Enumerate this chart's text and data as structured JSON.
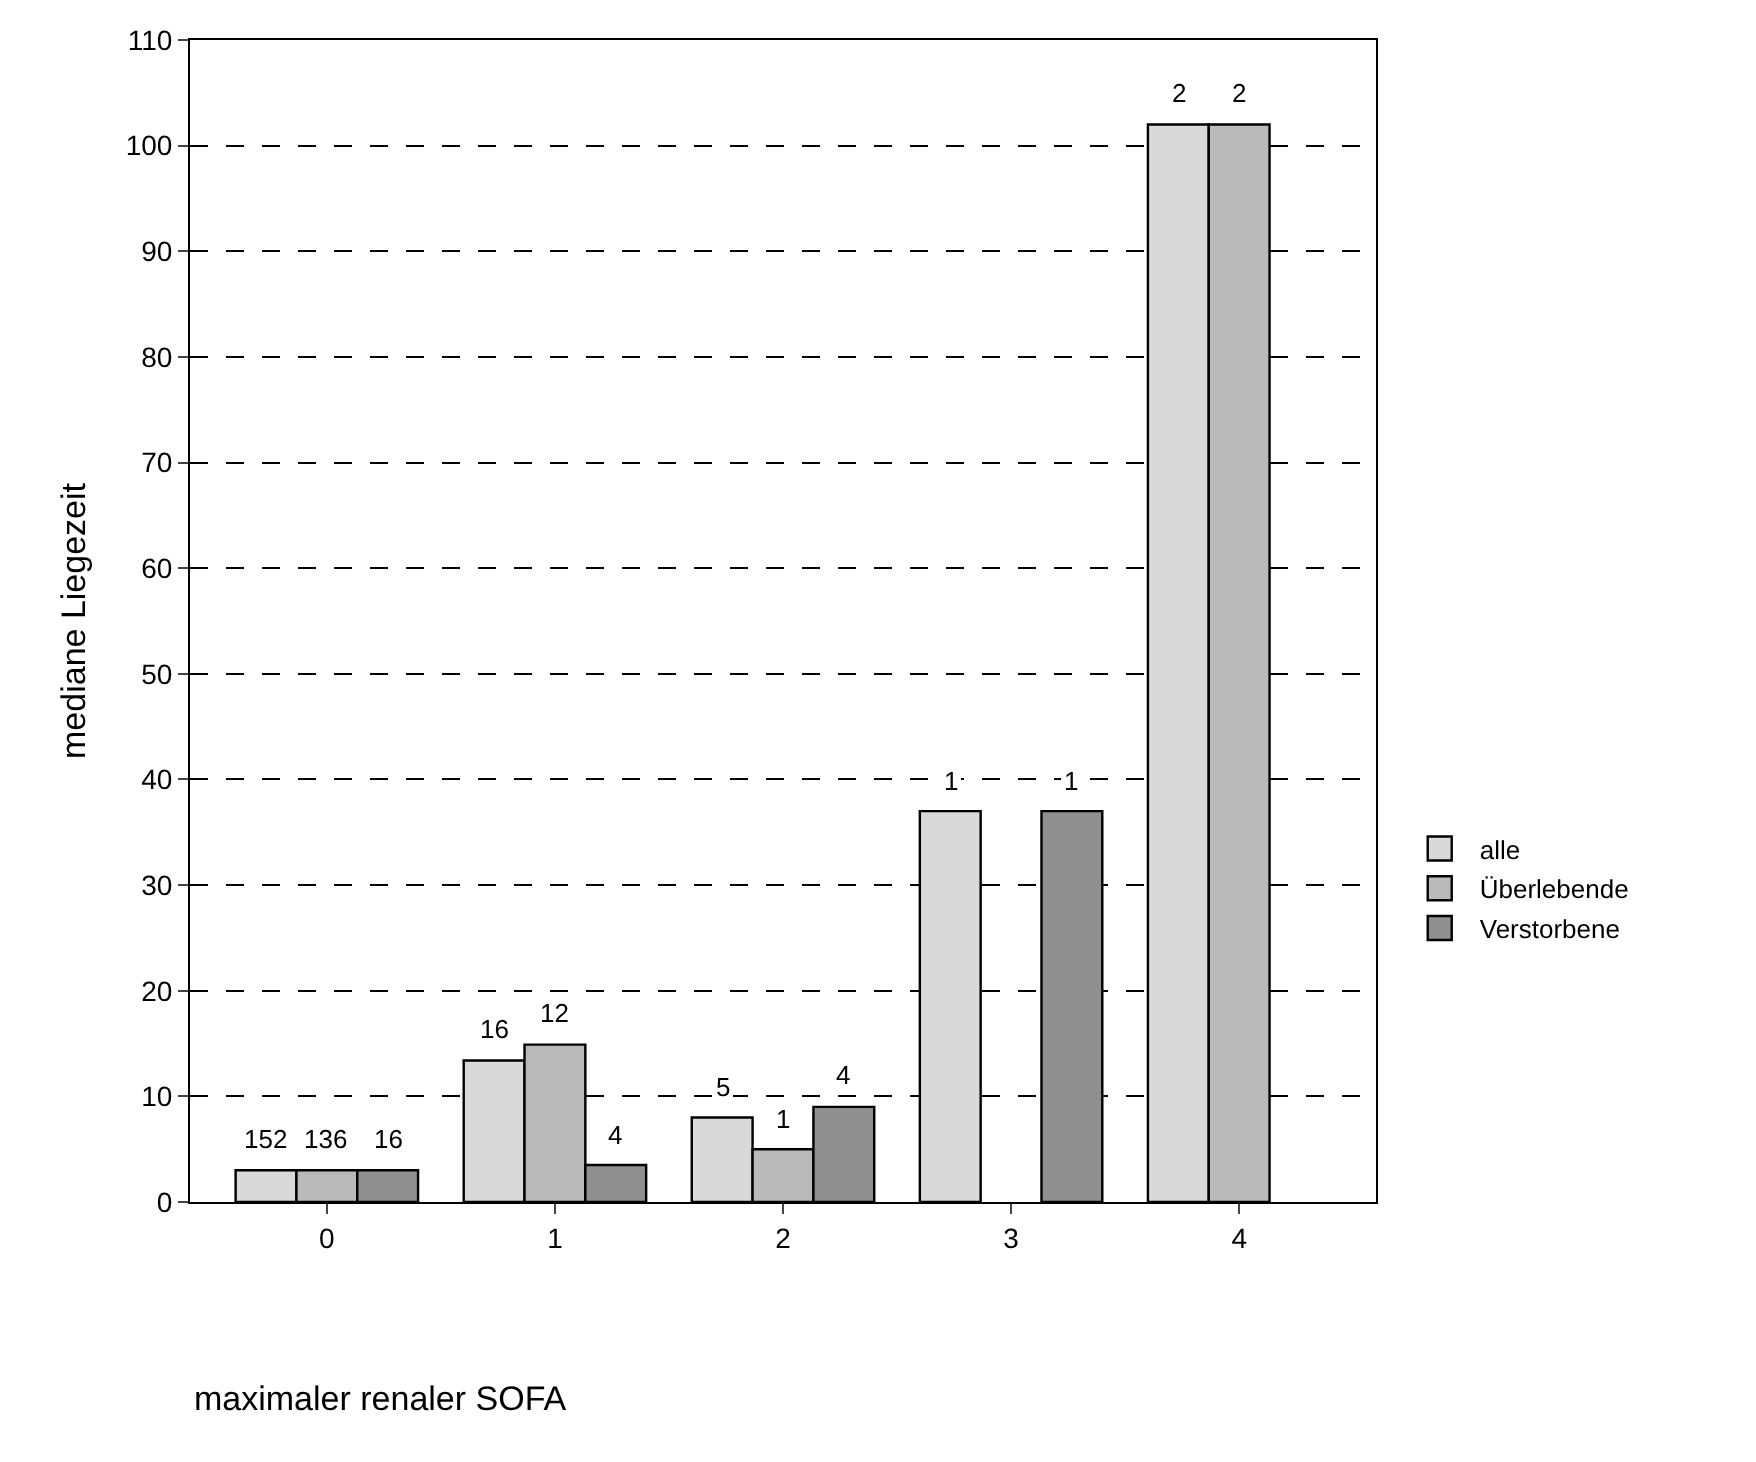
{
  "chart_data": {
    "type": "bar",
    "xlabel": "maximaler renaler SOFA",
    "ylabel": "mediane Liegezeit",
    "categories": [
      "0",
      "1",
      "2",
      "3",
      "4"
    ],
    "series": [
      {
        "name": "alle",
        "color": "#d9d9d9",
        "values": [
          3,
          13.4,
          8,
          37,
          102
        ]
      },
      {
        "name": "Überlebende",
        "color": "#bababa",
        "values": [
          3,
          14.9,
          5,
          null,
          102
        ]
      },
      {
        "name": "Verstorbene",
        "color": "#8f8f8f",
        "values": [
          3,
          3.5,
          9,
          37,
          null
        ]
      }
    ],
    "annotations": [
      "152",
      "136",
      "16",
      "16",
      "12",
      "4",
      "5",
      "1",
      "4",
      "1",
      "1",
      "2",
      "2"
    ],
    "ylim": [
      0,
      110
    ],
    "yticks": [
      0,
      10,
      20,
      30,
      40,
      50,
      60,
      70,
      80,
      90,
      100,
      110
    ],
    "grid": "y",
    "legend": "bottom right"
  }
}
